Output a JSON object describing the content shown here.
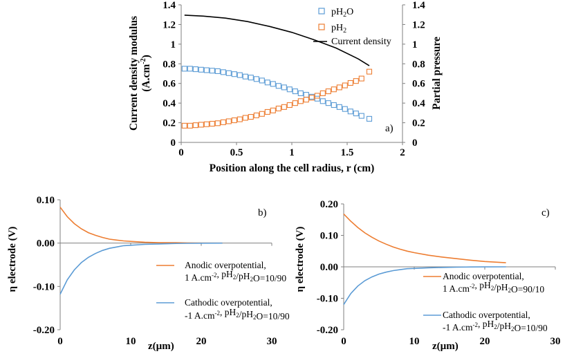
{
  "colors": {
    "orange": "#ED7D31",
    "blue": "#5B9BD5",
    "black": "#000000",
    "axis": "#7f7f7f"
  },
  "chart_data": [
    {
      "id": "a",
      "type": "line",
      "panel_label": "a)",
      "xlabel": "Position along the cell radius, r (cm)",
      "ylabel_left_line1": "Current density modulus",
      "ylabel_left_line2": "(A.cm",
      "ylabel_left_sup": "-2",
      "ylabel_left_close": ")",
      "ylabel_right": "Partial pressure",
      "xlim": [
        0,
        2
      ],
      "ylim": [
        0,
        1.4
      ],
      "y2lim": [
        0,
        1.4
      ],
      "xticks": [
        "0",
        "0.5",
        "1",
        "1.5",
        "2"
      ],
      "yticks": [
        "0",
        "0.2",
        "0.4",
        "0.6",
        "0.8",
        "1",
        "1.2",
        "1.4"
      ],
      "y2ticks": [
        "0",
        "0.2",
        "0.4",
        "0.6",
        "0.8",
        "1",
        "1.2",
        "1.4"
      ],
      "legend": [
        {
          "pre": "pH",
          "sub": "2",
          "post": "O",
          "marker": "square",
          "color": "#5B9BD5"
        },
        {
          "pre": "pH",
          "sub": "2",
          "post": "",
          "marker": "square",
          "color": "#ED7D31"
        },
        {
          "pre": "Current density",
          "sub": "",
          "post": "",
          "marker": "line",
          "color": "#000000"
        }
      ],
      "series": [
        {
          "name": "pH2O",
          "axis": "right",
          "style": "marker",
          "color": "#5B9BD5",
          "x": [
            0.03,
            0.08,
            0.13,
            0.18,
            0.23,
            0.28,
            0.33,
            0.38,
            0.43,
            0.48,
            0.53,
            0.58,
            0.63,
            0.68,
            0.73,
            0.78,
            0.83,
            0.88,
            0.93,
            0.98,
            1.03,
            1.08,
            1.13,
            1.18,
            1.23,
            1.28,
            1.33,
            1.38,
            1.43,
            1.48,
            1.53,
            1.58,
            1.63,
            1.7
          ],
          "y": [
            0.75,
            0.75,
            0.745,
            0.74,
            0.735,
            0.73,
            0.725,
            0.715,
            0.705,
            0.695,
            0.685,
            0.67,
            0.66,
            0.645,
            0.63,
            0.61,
            0.595,
            0.575,
            0.56,
            0.54,
            0.52,
            0.5,
            0.485,
            0.465,
            0.445,
            0.42,
            0.4,
            0.38,
            0.36,
            0.34,
            0.315,
            0.295,
            0.27,
            0.24
          ]
        },
        {
          "name": "pH2",
          "axis": "right",
          "style": "marker",
          "color": "#ED7D31",
          "x": [
            0.03,
            0.08,
            0.13,
            0.18,
            0.23,
            0.28,
            0.33,
            0.38,
            0.43,
            0.48,
            0.53,
            0.58,
            0.63,
            0.68,
            0.73,
            0.78,
            0.83,
            0.88,
            0.93,
            0.98,
            1.03,
            1.08,
            1.13,
            1.18,
            1.23,
            1.28,
            1.33,
            1.38,
            1.43,
            1.48,
            1.53,
            1.58,
            1.63,
            1.7
          ],
          "y": [
            0.17,
            0.17,
            0.175,
            0.18,
            0.185,
            0.19,
            0.195,
            0.205,
            0.215,
            0.225,
            0.235,
            0.25,
            0.26,
            0.275,
            0.29,
            0.31,
            0.325,
            0.345,
            0.36,
            0.38,
            0.4,
            0.42,
            0.435,
            0.455,
            0.475,
            0.5,
            0.52,
            0.54,
            0.56,
            0.58,
            0.605,
            0.625,
            0.65,
            0.72
          ]
        },
        {
          "name": "Current density",
          "axis": "left",
          "style": "line",
          "color": "#000000",
          "x": [
            0.03,
            0.2,
            0.4,
            0.6,
            0.8,
            1.0,
            1.2,
            1.4,
            1.6,
            1.7
          ],
          "y": [
            1.295,
            1.285,
            1.265,
            1.23,
            1.18,
            1.12,
            1.045,
            0.96,
            0.85,
            0.78
          ]
        }
      ]
    },
    {
      "id": "b",
      "type": "line",
      "panel_label": "b)",
      "xlabel": "z(µm)",
      "ylabel": "η electrode (V)",
      "xlim": [
        0,
        30
      ],
      "ylim": [
        -0.2,
        0.1
      ],
      "xticks": [
        "0",
        "10",
        "20",
        "30"
      ],
      "yticks": [
        "-0.20",
        "-0.10",
        "0.00",
        "0.10"
      ],
      "legend": [
        {
          "line1": "Anodic overpotential,",
          "line2": "1 A.cm-2,  pH2/pH2O=10/90",
          "color": "#ED7D31"
        },
        {
          "line1": "Cathodic overpotential,",
          "line2": "-1 A.cm-2,  pH2/pH2O=10/90",
          "color": "#5B9BD5"
        }
      ],
      "series": [
        {
          "name": "Anodic overpotential",
          "color": "#ED7D31",
          "x": [
            0,
            1,
            2,
            3,
            4,
            5,
            6,
            7,
            8,
            9,
            10,
            12,
            14,
            16,
            18,
            20,
            23
          ],
          "y": [
            0.083,
            0.061,
            0.045,
            0.033,
            0.024,
            0.018,
            0.013,
            0.009,
            0.007,
            0.005,
            0.004,
            0.002,
            0.001,
            0.001,
            0.0005,
            0.0002,
            0.0
          ]
        },
        {
          "name": "Cathodic overpotential",
          "color": "#5B9BD5",
          "x": [
            0,
            1,
            2,
            3,
            4,
            5,
            6,
            7,
            8,
            9,
            10,
            12,
            14,
            16,
            18,
            20,
            23
          ],
          "y": [
            -0.118,
            -0.085,
            -0.062,
            -0.045,
            -0.033,
            -0.024,
            -0.017,
            -0.012,
            -0.009,
            -0.006,
            -0.005,
            -0.003,
            -0.002,
            -0.001,
            -0.0005,
            -0.0002,
            0.0
          ]
        }
      ]
    },
    {
      "id": "c",
      "type": "line",
      "panel_label": "c)",
      "xlabel": "z(µm)",
      "ylabel": "η electrode (V)",
      "xlim": [
        0,
        30
      ],
      "ylim": [
        -0.2,
        0.2
      ],
      "xticks": [
        "0",
        "10",
        "20",
        "30"
      ],
      "yticks": [
        "-0.20",
        "-0.10",
        "0.00",
        "0.10",
        "0.20"
      ],
      "legend": [
        {
          "line1": "Anodic overpotential,",
          "line2": "1 A.cm-2,  pH2/pH2O=90/10",
          "color": "#ED7D31"
        },
        {
          "line1": "Cathodic overpotential,",
          "line2": "-1 A.cm-2,  pH2/pH2O=10/90",
          "color": "#5B9BD5"
        }
      ],
      "series": [
        {
          "name": "Anodic overpotential",
          "color": "#ED7D31",
          "x": [
            0,
            1,
            2,
            3,
            4,
            5,
            6,
            7,
            8,
            9,
            10,
            12,
            14,
            16,
            18,
            20,
            23
          ],
          "y": [
            0.168,
            0.145,
            0.125,
            0.108,
            0.094,
            0.082,
            0.072,
            0.063,
            0.056,
            0.05,
            0.045,
            0.037,
            0.031,
            0.026,
            0.021,
            0.017,
            0.013
          ]
        },
        {
          "name": "Cathodic overpotential",
          "color": "#5B9BD5",
          "x": [
            0,
            1,
            2,
            3,
            4,
            5,
            6,
            7,
            8,
            9,
            10,
            12,
            14,
            16,
            18,
            20,
            23
          ],
          "y": [
            -0.12,
            -0.085,
            -0.061,
            -0.044,
            -0.032,
            -0.023,
            -0.017,
            -0.012,
            -0.009,
            -0.006,
            -0.005,
            -0.003,
            -0.002,
            -0.001,
            -0.0005,
            -0.0002,
            0.0
          ]
        }
      ]
    }
  ]
}
